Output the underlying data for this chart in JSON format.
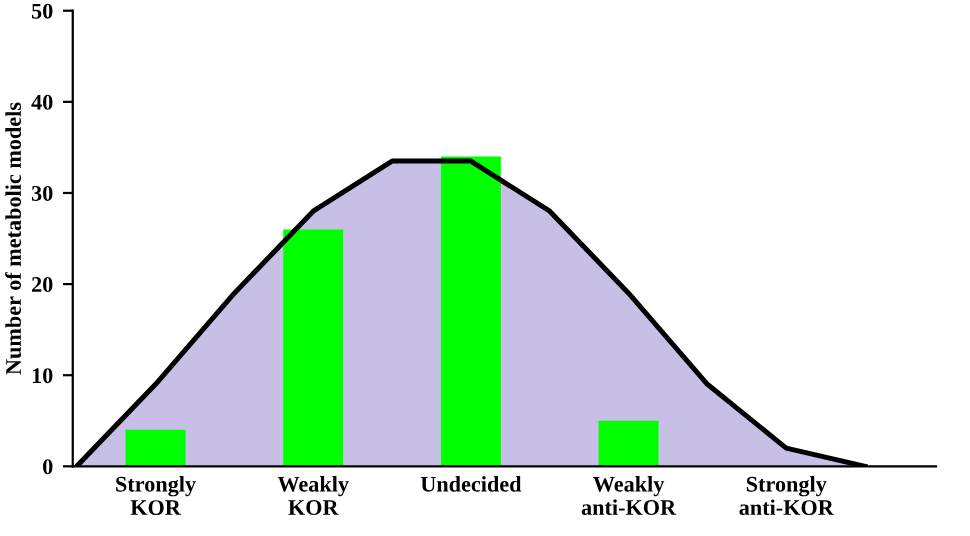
{
  "chart_data": {
    "type": "bar",
    "ylabel": "Number of metabolic models",
    "categories": [
      null,
      "Strongly\nKOR",
      null,
      "Weakly\nKOR",
      null,
      "Undecided",
      null,
      "Weakly\nanti-KOR",
      null,
      "Strongly\nanti-KOR",
      null
    ],
    "ylim": [
      0,
      50
    ],
    "yticks": [
      0,
      10,
      20,
      30,
      40,
      50
    ],
    "grid": false,
    "legend": false,
    "series": [
      {
        "type": "area",
        "color": "#c8bfe7",
        "values": [
          0,
          9,
          19,
          28,
          33.5,
          33.5,
          28,
          19,
          9,
          2,
          0
        ]
      },
      {
        "color": "#00ff00",
        "values": [
          null,
          4,
          null,
          26,
          null,
          34,
          null,
          5,
          null,
          0,
          null
        ]
      }
    ]
  }
}
